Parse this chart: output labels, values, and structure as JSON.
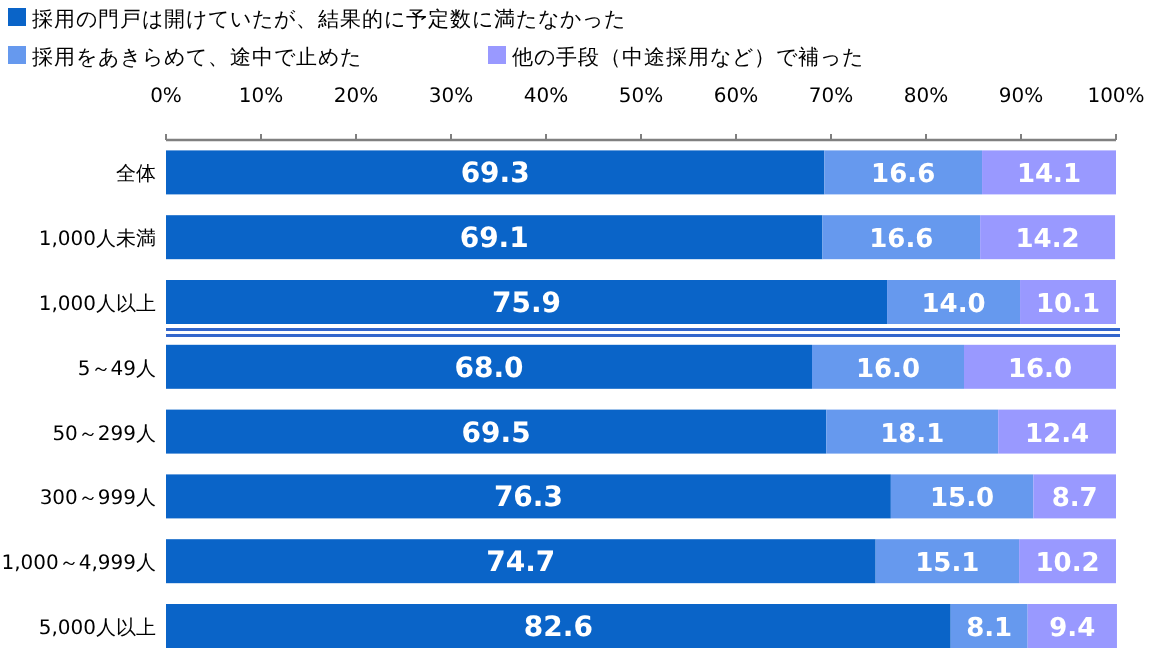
{
  "chart_data": {
    "type": "bar",
    "orientation": "horizontal",
    "stacked": true,
    "legend": "top left",
    "categories": [
      "全体",
      "1,000人未満",
      "1,000人以上",
      "5～49人",
      "50～299人",
      "300～999人",
      "1,000～4,999人",
      "5,000人以上"
    ],
    "series": [
      {
        "name": "採用の門戸は開けていたが、結果的に予定数に満たなかった",
        "color": "#0a64c8",
        "values": [
          69.3,
          69.1,
          75.9,
          68.0,
          69.5,
          76.3,
          74.7,
          82.6
        ],
        "value_labels": [
          "69.3",
          "69.1",
          "75.9",
          "68.0",
          "69.5",
          "76.3",
          "74.7",
          "82.6"
        ]
      },
      {
        "name": "採用をあきらめて、途中で止めた",
        "color": "#6699ee",
        "values": [
          16.6,
          16.6,
          14.0,
          16.0,
          18.1,
          15.0,
          15.1,
          8.1
        ],
        "value_labels": [
          "16.6",
          "16.6",
          "14.0",
          "16.0",
          "18.1",
          "15.0",
          "15.1",
          "8.1"
        ]
      },
      {
        "name": "他の手段（中途採用など）で補った",
        "color": "#9999ff",
        "values": [
          14.1,
          14.2,
          10.1,
          16.0,
          12.4,
          8.7,
          10.2,
          9.4
        ],
        "value_labels": [
          "14.1",
          "14.2",
          "10.1",
          "16.0",
          "12.4",
          "8.7",
          "10.2",
          "9.4"
        ]
      }
    ],
    "xlim": [
      0,
      100
    ],
    "xticks": [
      {
        "value": 0,
        "label": "0%"
      },
      {
        "value": 10,
        "label": "10%"
      },
      {
        "value": 20,
        "label": "20%"
      },
      {
        "value": 30,
        "label": "30%"
      },
      {
        "value": 40,
        "label": "40%"
      },
      {
        "value": 50,
        "label": "50%"
      },
      {
        "value": 60,
        "label": "60%"
      },
      {
        "value": 70,
        "label": "70%"
      },
      {
        "value": 80,
        "label": "80%"
      },
      {
        "value": 90,
        "label": "90%"
      },
      {
        "value": 100,
        "label": "100%"
      }
    ]
  }
}
